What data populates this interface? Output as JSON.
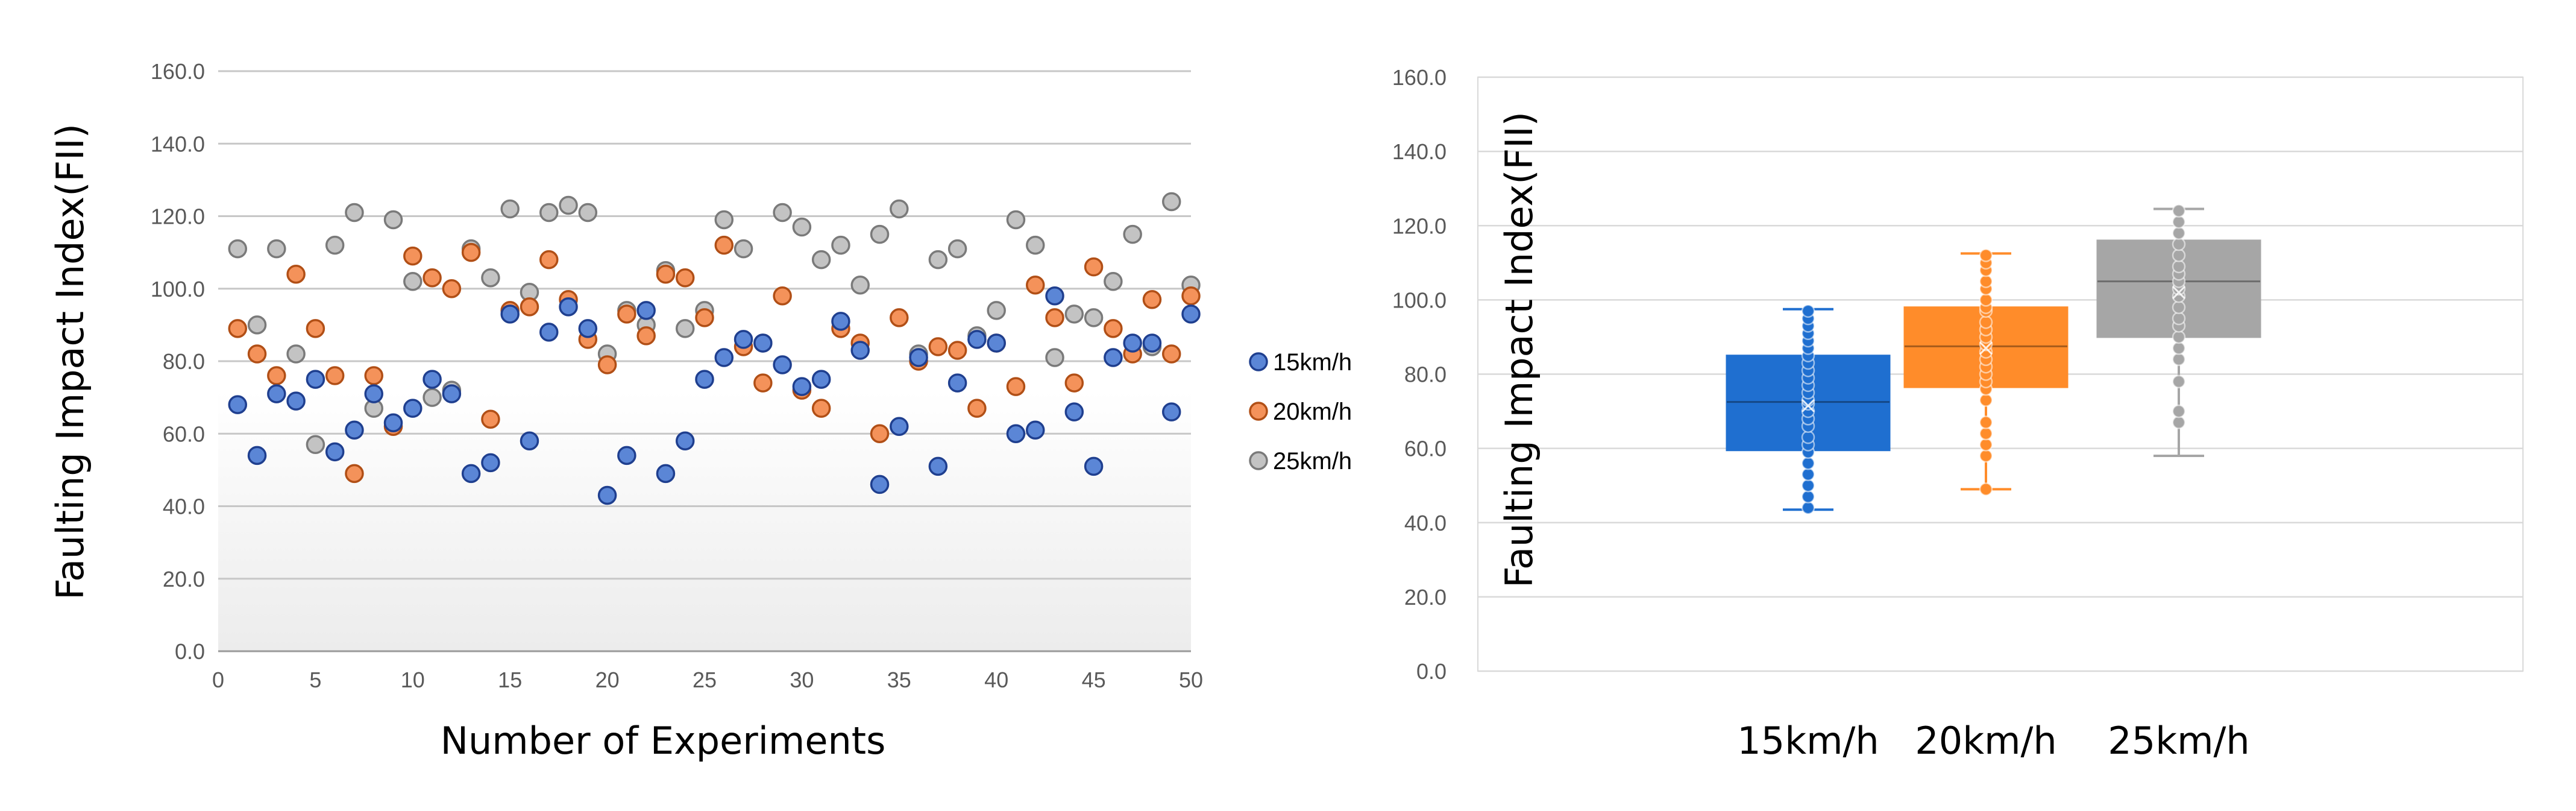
{
  "colors": {
    "s15_fill": "#5b86d6",
    "s15_stroke": "#1f3f8f",
    "s20_fill": "#f4925a",
    "s20_stroke": "#b14f16",
    "s25_fill": "#c3c3c3",
    "s25_stroke": "#7a7a7a",
    "box15": "#1f6fd0",
    "box20": "#ff8c2a",
    "box25": "#a6a6a6",
    "grid": "#c7c7c7"
  },
  "chart_data": [
    {
      "type": "scatter",
      "title": "",
      "xlabel": "Number of Experiments",
      "ylabel": "Faulting Impact Index(FII)",
      "xlim": [
        0,
        50
      ],
      "ylim": [
        0,
        160
      ],
      "x_ticks": [
        "0",
        "5",
        "10",
        "15",
        "20",
        "25",
        "30",
        "35",
        "40",
        "45",
        "50"
      ],
      "y_ticks": [
        "0.0",
        "20.0",
        "40.0",
        "60.0",
        "80.0",
        "100.0",
        "120.0",
        "140.0",
        "160.0"
      ],
      "legend_position": "right",
      "series": [
        {
          "name": "15km/h",
          "key": "s15",
          "x": [
            1,
            2,
            3,
            4,
            5,
            6,
            7,
            8,
            9,
            10,
            11,
            12,
            13,
            14,
            15,
            16,
            17,
            18,
            19,
            20,
            21,
            22,
            23,
            24,
            25,
            26,
            27,
            28,
            29,
            30,
            31,
            32,
            33,
            34,
            35,
            36,
            37,
            38,
            39,
            40,
            41,
            42,
            43,
            44,
            45,
            46,
            47,
            48,
            49,
            50
          ],
          "values": [
            68,
            54,
            71,
            69,
            75,
            55,
            61,
            71,
            63,
            67,
            75,
            71,
            49,
            52,
            93,
            58,
            88,
            95,
            89,
            43,
            54,
            94,
            49,
            58,
            75,
            81,
            86,
            85,
            79,
            73,
            75,
            91,
            83,
            46,
            62,
            81,
            51,
            74,
            86,
            85,
            60,
            61,
            98,
            66,
            51,
            81,
            85,
            85,
            66,
            93
          ]
        },
        {
          "name": "20km/h",
          "key": "s20",
          "x": [
            1,
            2,
            3,
            4,
            5,
            6,
            7,
            8,
            9,
            10,
            11,
            12,
            13,
            14,
            15,
            16,
            17,
            18,
            19,
            20,
            21,
            22,
            23,
            24,
            25,
            26,
            27,
            28,
            29,
            30,
            31,
            32,
            33,
            34,
            35,
            36,
            37,
            38,
            39,
            40,
            41,
            42,
            43,
            44,
            45,
            46,
            47,
            48,
            49,
            50
          ],
          "values": [
            89,
            82,
            76,
            104,
            89,
            76,
            49,
            76,
            62,
            109,
            103,
            100,
            110,
            64,
            94,
            95,
            108,
            97,
            86,
            79,
            93,
            87,
            104,
            103,
            92,
            112,
            84,
            74,
            98,
            72,
            67,
            89,
            85,
            60,
            92,
            80,
            84,
            83,
            67,
            85,
            73,
            101,
            92,
            74,
            106,
            89,
            82,
            97,
            82,
            98
          ]
        },
        {
          "name": "25km/h",
          "key": "s25",
          "x": [
            1,
            2,
            3,
            4,
            5,
            6,
            7,
            8,
            9,
            10,
            11,
            12,
            13,
            14,
            15,
            16,
            17,
            18,
            19,
            20,
            21,
            22,
            23,
            24,
            25,
            26,
            27,
            28,
            29,
            30,
            31,
            32,
            33,
            34,
            35,
            36,
            37,
            38,
            39,
            40,
            41,
            42,
            43,
            44,
            45,
            46,
            47,
            48,
            49,
            50
          ],
          "values": [
            111,
            90,
            111,
            82,
            57,
            112,
            121,
            67,
            119,
            102,
            70,
            72,
            111,
            103,
            122,
            99,
            121,
            123,
            121,
            82,
            94,
            90,
            105,
            89,
            94,
            119,
            111,
            85,
            121,
            117,
            108,
            112,
            101,
            115,
            122,
            82,
            108,
            111,
            87,
            94,
            119,
            112,
            81,
            93,
            92,
            102,
            115,
            84,
            124,
            101
          ]
        }
      ]
    },
    {
      "type": "box",
      "title": "",
      "xlabel": "",
      "ylabel": "Faulting Impact Index(FII)",
      "ylim": [
        0,
        160
      ],
      "y_ticks": [
        "0.0",
        "20.0",
        "40.0",
        "60.0",
        "80.0",
        "100.0",
        "120.0",
        "140.0",
        "160.0"
      ],
      "categories": [
        "15km/h",
        "20km/h",
        "25km/h"
      ],
      "boxes": [
        {
          "name": "15km/h",
          "key": "box15",
          "min": 43.5,
          "q1": 59.5,
          "median": 72.5,
          "mean": 71.5,
          "q3": 85,
          "max": 97.5,
          "points": [
            44,
            47,
            50,
            53,
            56,
            59,
            61,
            63,
            66,
            68,
            70,
            72,
            73,
            75,
            77,
            79,
            81,
            83,
            85,
            87,
            89,
            91,
            93,
            95,
            97
          ]
        },
        {
          "name": "20km/h",
          "key": "box20",
          "min": 49,
          "q1": 76.5,
          "median": 87.5,
          "mean": 87,
          "q3": 98,
          "max": 112.5,
          "points": [
            49,
            58,
            61,
            64,
            67,
            73,
            76,
            78,
            80,
            82,
            84,
            86,
            88,
            90,
            92,
            94,
            97,
            98,
            100,
            103,
            105,
            108,
            110,
            112
          ]
        },
        {
          "name": "25km/h",
          "key": "box25",
          "min": 58,
          "q1": 90,
          "median": 105,
          "mean": 102,
          "q3": 116,
          "max": 124.5,
          "points": [
            67,
            70,
            78,
            84,
            87,
            90,
            93,
            95,
            98,
            101,
            103,
            105,
            107,
            109,
            112,
            115,
            118,
            121,
            124
          ]
        }
      ]
    }
  ]
}
